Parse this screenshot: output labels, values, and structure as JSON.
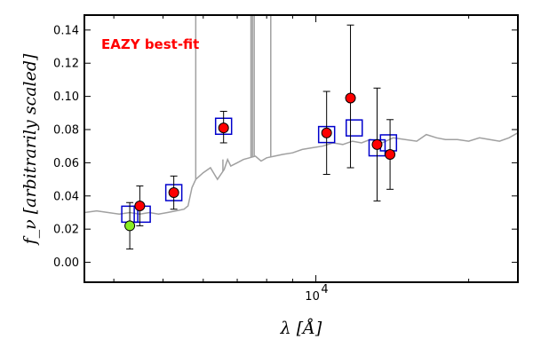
{
  "chart_data": {
    "type": "scatter",
    "title": "",
    "annotation": "EAZY best-fit",
    "annotation_color": "#ff0000",
    "xlabel": "λ [Å]",
    "ylabel": "f_ν [arbitrarily scaled]",
    "x_scale": "log",
    "xlim": [
      3500,
      25000
    ],
    "ylim": [
      -0.012,
      0.149
    ],
    "x_tick_major": 10000,
    "x_tick_major_label": "10",
    "x_tick_major_label_exp": "4",
    "y_ticks": [
      0.0,
      0.02,
      0.04,
      0.06,
      0.08,
      0.1,
      0.12,
      0.14
    ],
    "y_tick_labels": [
      "0.00",
      "0.02",
      "0.04",
      "0.06",
      "0.08",
      "0.10",
      "0.12",
      "0.14"
    ],
    "x_minor_ticks": [
      4000,
      5000,
      6000,
      7000,
      8000,
      9000,
      20000
    ],
    "grid": false,
    "model_spectrum": {
      "color": "#a0a0a0",
      "x": [
        3500,
        3700,
        3900,
        4100,
        4300,
        4500,
        4700,
        4900,
        5100,
        5300,
        5500,
        5600,
        5700,
        5800,
        6000,
        6200,
        6400,
        6600,
        6700,
        6800,
        7000,
        7200,
        7400,
        7600,
        7800,
        8000,
        8300,
        8600,
        9000,
        9400,
        9800,
        10300,
        10800,
        11300,
        11800,
        12300,
        12800,
        13500,
        14200,
        15000,
        15800,
        16500,
        17300,
        18000,
        19000,
        20000,
        21000,
        22000,
        23000,
        24000,
        25000
      ],
      "y": [
        0.03,
        0.031,
        0.03,
        0.029,
        0.03,
        0.029,
        0.03,
        0.029,
        0.03,
        0.031,
        0.032,
        0.034,
        0.045,
        0.05,
        0.054,
        0.057,
        0.05,
        0.056,
        0.062,
        0.058,
        0.06,
        0.062,
        0.063,
        0.064,
        0.061,
        0.063,
        0.064,
        0.065,
        0.066,
        0.068,
        0.069,
        0.07,
        0.072,
        0.071,
        0.073,
        0.072,
        0.074,
        0.072,
        0.075,
        0.074,
        0.073,
        0.077,
        0.075,
        0.074,
        0.074,
        0.073,
        0.075,
        0.074,
        0.073,
        0.075,
        0.078
      ]
    },
    "emission_lines": [
      {
        "x": 5800,
        "y_top": 0.149
      },
      {
        "x": 6560,
        "y_top": 0.062
      },
      {
        "x": 7450,
        "y_top": 0.149
      },
      {
        "x": 7500,
        "y_top": 0.149
      },
      {
        "x": 7560,
        "y_top": 0.149
      },
      {
        "x": 8150,
        "y_top": 0.149
      }
    ],
    "series": [
      {
        "marker": "square",
        "color": "#0000cc",
        "x": [
          4300,
          4550,
          5250,
          6580,
          10500,
          11900,
          13200,
          13900
        ],
        "y": [
          0.029,
          0.029,
          0.042,
          0.082,
          0.077,
          0.081,
          0.069,
          0.072
        ]
      },
      {
        "marker": "circle",
        "color": "#ff0000",
        "x": [
          4500,
          5250,
          6580,
          10500,
          11700,
          13200,
          14000
        ],
        "y": [
          0.034,
          0.042,
          0.081,
          0.078,
          0.099,
          0.071,
          0.065
        ],
        "yerr_low": [
          0.012,
          0.01,
          0.009,
          0.025,
          0.042,
          0.034,
          0.021
        ],
        "yerr_high": [
          0.012,
          0.01,
          0.01,
          0.025,
          0.044,
          0.034,
          0.021
        ]
      },
      {
        "marker": "circle",
        "color": "#88ee22",
        "x": [
          4300
        ],
        "y": [
          0.022
        ],
        "yerr_low": [
          0.014
        ],
        "yerr_high": [
          0.014
        ]
      }
    ]
  }
}
